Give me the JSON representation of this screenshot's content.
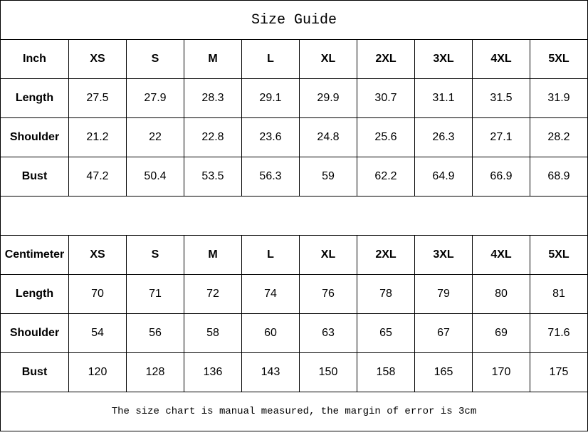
{
  "title": "Size Guide",
  "sizes": [
    "XS",
    "S",
    "M",
    "L",
    "XL",
    "2XL",
    "3XL",
    "4XL",
    "5XL"
  ],
  "inch": {
    "unit_label": "Inch",
    "rows": [
      {
        "label": "Length",
        "values": [
          "27.5",
          "27.9",
          "28.3",
          "29.1",
          "29.9",
          "30.7",
          "31.1",
          "31.5",
          "31.9"
        ]
      },
      {
        "label": "Shoulder",
        "values": [
          "21.2",
          "22",
          "22.8",
          "23.6",
          "24.8",
          "25.6",
          "26.3",
          "27.1",
          "28.2"
        ]
      },
      {
        "label": "Bust",
        "values": [
          "47.2",
          "50.4",
          "53.5",
          "56.3",
          "59",
          "62.2",
          "64.9",
          "66.9",
          "68.9"
        ]
      }
    ]
  },
  "cm": {
    "unit_label": "Centimeter",
    "rows": [
      {
        "label": "Length",
        "values": [
          "70",
          "71",
          "72",
          "74",
          "76",
          "78",
          "79",
          "80",
          "81"
        ]
      },
      {
        "label": "Shoulder",
        "values": [
          "54",
          "56",
          "58",
          "60",
          "63",
          "65",
          "67",
          "69",
          "71.6"
        ]
      },
      {
        "label": "Bust",
        "values": [
          "120",
          "128",
          "136",
          "143",
          "150",
          "158",
          "165",
          "170",
          "175"
        ]
      }
    ]
  },
  "footer_note": "The size chart is manual measured, the margin of error is 3cm"
}
